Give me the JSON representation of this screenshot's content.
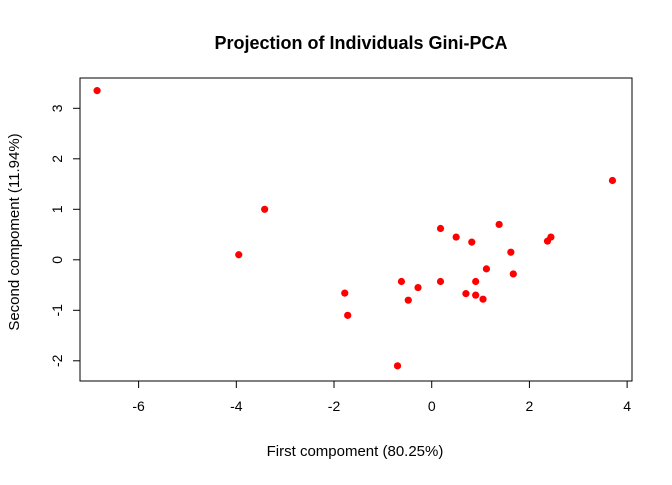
{
  "chart_data": {
    "type": "scatter",
    "title": "Projection of Individuals Gini-PCA",
    "xlabel": "First compoment (80.25%)",
    "ylabel": "Second compoment (11.94%)",
    "xlim": [
      -7.2,
      4.1
    ],
    "ylim": [
      -2.4,
      3.6
    ],
    "x_ticks": [
      -6,
      -4,
      -2,
      0,
      2,
      4
    ],
    "x_tick_labels": [
      "-6",
      "-4",
      "-2",
      "0",
      "2",
      "4"
    ],
    "y_ticks": [
      -2,
      -1,
      0,
      1,
      2,
      3
    ],
    "y_tick_labels": [
      "-2",
      "-1",
      "0",
      "1",
      "2",
      "3"
    ],
    "grid": false,
    "point_color": "#ff0000",
    "points": [
      {
        "x": -6.85,
        "y": 3.35
      },
      {
        "x": -3.42,
        "y": 1.0
      },
      {
        "x": -3.95,
        "y": 0.1
      },
      {
        "x": -1.78,
        "y": -0.66
      },
      {
        "x": -1.72,
        "y": -1.1
      },
      {
        "x": -0.62,
        "y": -0.43
      },
      {
        "x": -0.48,
        "y": -0.8
      },
      {
        "x": -0.28,
        "y": -0.55
      },
      {
        "x": -0.7,
        "y": -2.1
      },
      {
        "x": 0.18,
        "y": 0.62
      },
      {
        "x": 0.18,
        "y": -0.43
      },
      {
        "x": 0.5,
        "y": 0.45
      },
      {
        "x": 0.7,
        "y": -0.67
      },
      {
        "x": 0.82,
        "y": 0.35
      },
      {
        "x": 0.9,
        "y": -0.43
      },
      {
        "x": 0.9,
        "y": -0.7
      },
      {
        "x": 1.05,
        "y": -0.78
      },
      {
        "x": 1.12,
        "y": -0.18
      },
      {
        "x": 1.38,
        "y": 0.7
      },
      {
        "x": 1.62,
        "y": 0.15
      },
      {
        "x": 1.67,
        "y": -0.28
      },
      {
        "x": 2.37,
        "y": 0.37
      },
      {
        "x": 2.44,
        "y": 0.45
      },
      {
        "x": 3.7,
        "y": 1.57
      }
    ]
  }
}
